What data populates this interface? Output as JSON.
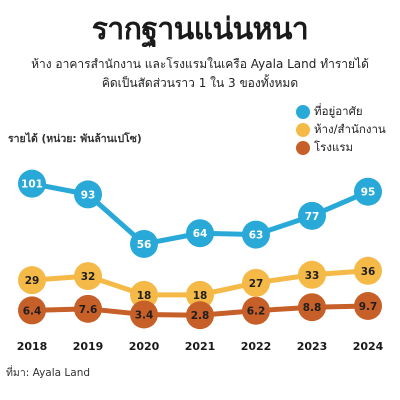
{
  "title": "รากฐานแน่นหนา",
  "subtitle_lines": [
    "ห้าง อาคารสำนักงาน และโรงแรมในเครือ Ayala Land ทำรายได้",
    "คิดเป็นสัดส่วนราว 1 ใน 3 ของทั้งหมด"
  ],
  "source": "ที่มา: Ayala Land",
  "chart_data": {
    "type": "line",
    "ylabel": "รายได้ (หน่วย: พันล้านเปโซ)",
    "xlabel": "",
    "categories": [
      "2018",
      "2019",
      "2020",
      "2021",
      "2022",
      "2023",
      "2024"
    ],
    "ylim": [
      0,
      110
    ],
    "grid": false,
    "legend_position": "top-right",
    "series": [
      {
        "name": "ที่อยู่อาศัย",
        "color": "#29a9d8",
        "label_color": "#ffffff",
        "values": [
          101,
          93,
          56,
          64,
          63,
          77,
          95
        ],
        "labels": [
          "101",
          "93",
          "56",
          "64",
          "63",
          "77",
          "95"
        ]
      },
      {
        "name": "ห้าง/สำนักงาน",
        "color": "#f5b948",
        "label_color": "#1f1f1f",
        "values": [
          29,
          32,
          18,
          18,
          27,
          33,
          36
        ],
        "labels": [
          "29",
          "32",
          "18",
          "18",
          "27",
          "33",
          "36"
        ]
      },
      {
        "name": "โรงแรม",
        "color": "#c65f28",
        "label_color": "#1f1f1f",
        "values": [
          6.4,
          7.6,
          3.4,
          2.8,
          6.2,
          8.8,
          9.7
        ],
        "labels": [
          "6.4",
          "7.6",
          "3.4",
          "2.8",
          "6.2",
          "8.8",
          "9.7"
        ]
      }
    ]
  }
}
